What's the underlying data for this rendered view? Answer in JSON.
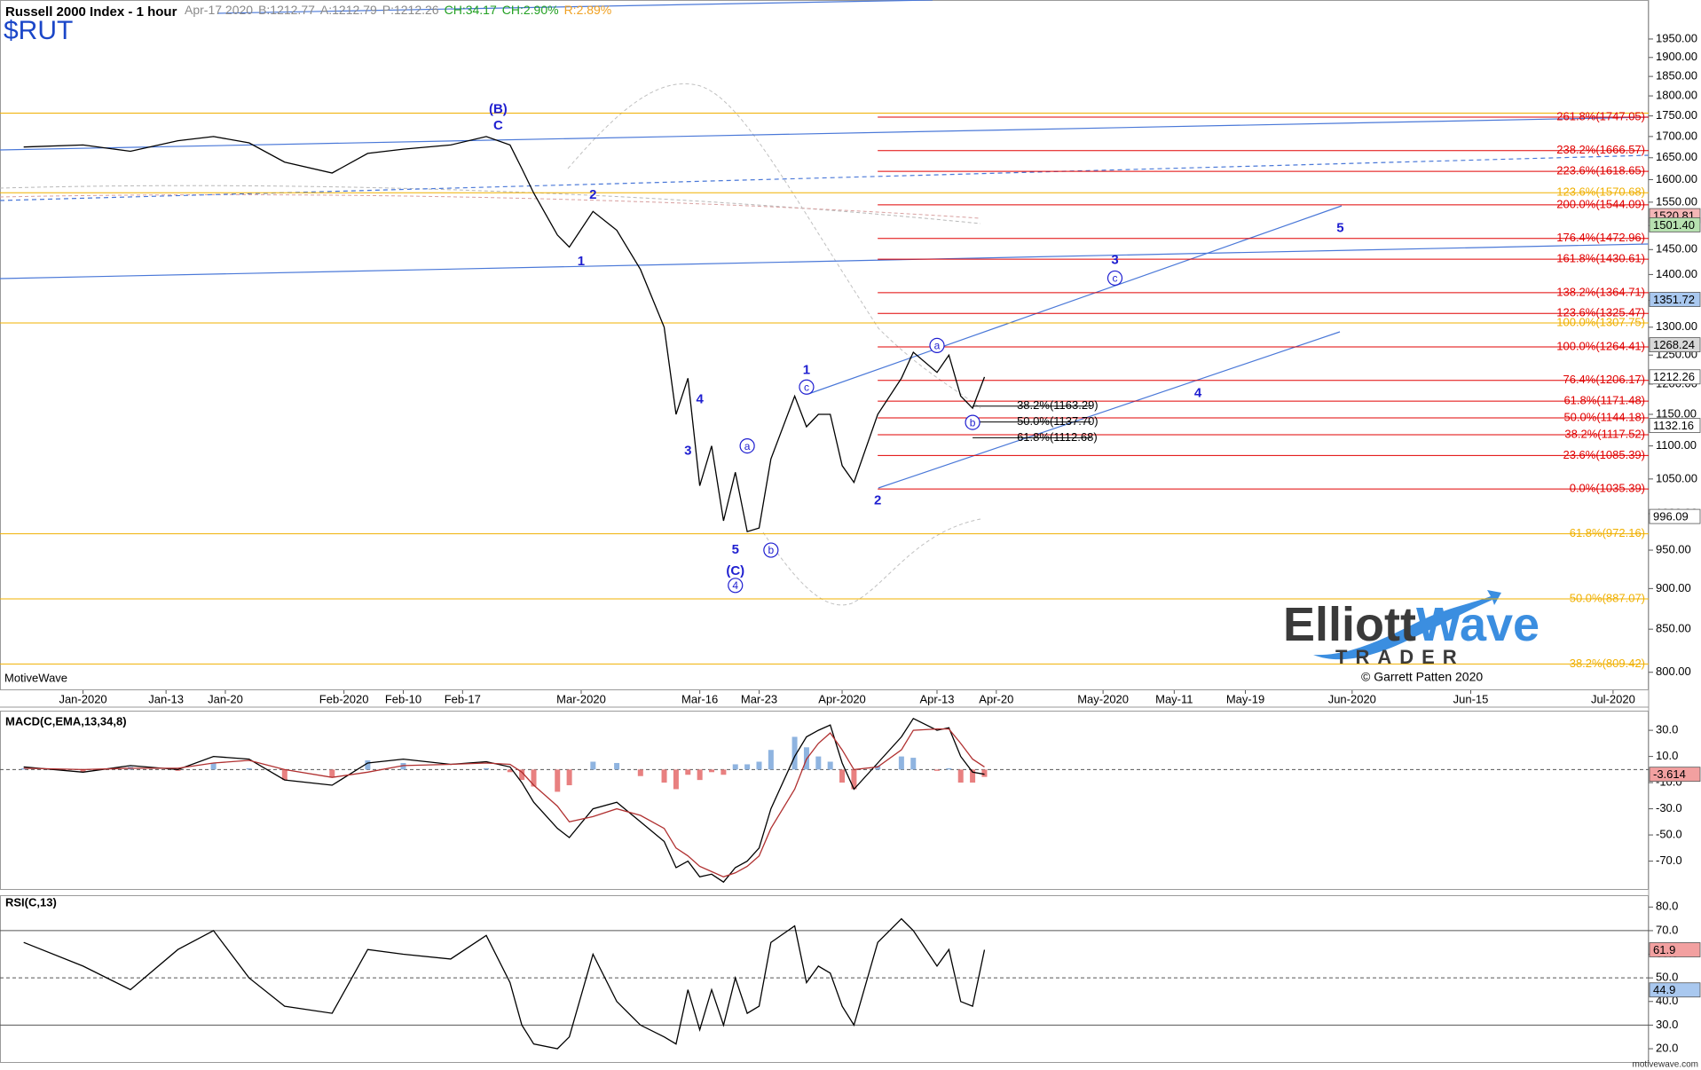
{
  "header": {
    "symbol": "$RUT",
    "quote": [
      {
        "text": "Apr-17 2020",
        "color": "#8a8a8a"
      },
      {
        "text": "B:1212.77",
        "color": "#8a8a8a"
      },
      {
        "text": "A:1212.79",
        "color": "#8a8a8a"
      },
      {
        "text": "P:1212.26",
        "color": "#8a8a8a"
      },
      {
        "text": "CH:34.17",
        "color": "#22a022"
      },
      {
        "text": "CH:2.90%",
        "color": "#22a022"
      },
      {
        "text": "R:2.89%",
        "color": "#f0a020"
      }
    ]
  },
  "footer": {
    "platform": "MotiveWave",
    "copyright": "© Garrett Patten 2020",
    "site": "motivewave.com",
    "logo_word1": "Elliott",
    "logo_word2": "Wave",
    "logo_word3": "TRADER"
  },
  "chart_data": [
    {
      "type": "line",
      "title": "Russell 2000 Index - 1 hour",
      "log_scale": true,
      "x": [
        "2019-12-26",
        "2020-01-02",
        "2020-01-08",
        "2020-01-14",
        "2020-01-17",
        "2020-01-22",
        "2020-01-27",
        "2020-01-31",
        "2020-02-05",
        "2020-02-10",
        "2020-02-14",
        "2020-02-19",
        "2020-02-21",
        "2020-02-24",
        "2020-02-25",
        "2020-02-27",
        "2020-02-28",
        "2020-03-03",
        "2020-03-05",
        "2020-03-09",
        "2020-03-11",
        "2020-03-12",
        "2020-03-13",
        "2020-03-16",
        "2020-03-17",
        "2020-03-18",
        "2020-03-19",
        "2020-03-20",
        "2020-03-23",
        "2020-03-24",
        "2020-03-26",
        "2020-03-27",
        "2020-03-30",
        "2020-03-31",
        "2020-04-01",
        "2020-04-02",
        "2020-04-06",
        "2020-04-08",
        "2020-04-09",
        "2020-04-13",
        "2020-04-14",
        "2020-04-15",
        "2020-04-16",
        "2020-04-17"
      ],
      "series": [
        {
          "color": "#000000",
          "values": [
            1675,
            1680,
            1665,
            1690,
            1700,
            1685,
            1640,
            1615,
            1660,
            1670,
            1680,
            1700,
            1680,
            1625,
            1570,
            1480,
            1455,
            1530,
            1490,
            1410,
            1300,
            1150,
            1210,
            1040,
            1100,
            990,
            1060,
            975,
            980,
            1080,
            1180,
            1130,
            1150,
            1150,
            1070,
            1045,
            1150,
            1210,
            1255,
            1220,
            1250,
            1180,
            1160,
            1212
          ]
        }
      ],
      "xlim": [
        "2019-12-24",
        "2020-07-06"
      ],
      "xticks": [
        {
          "value": "2020-01-02",
          "label": "Jan-2020"
        },
        {
          "value": "2020-01-13",
          "label": "Jan-13"
        },
        {
          "value": "2020-01-20",
          "label": "Jan-20"
        },
        {
          "value": "2020-02-03",
          "label": "Feb-2020"
        },
        {
          "value": "2020-02-10",
          "label": "Feb-10"
        },
        {
          "value": "2020-02-17",
          "label": "Feb-17"
        },
        {
          "value": "2020-03-02",
          "label": "Mar-2020"
        },
        {
          "value": "2020-03-16",
          "label": "Mar-16"
        },
        {
          "value": "2020-03-23",
          "label": "Mar-23"
        },
        {
          "value": "2020-04-01",
          "label": "Apr-2020"
        },
        {
          "value": "2020-04-13",
          "label": "Apr-13"
        },
        {
          "value": "2020-04-20",
          "label": "Apr-20"
        },
        {
          "value": "2020-05-01",
          "label": "May-2020"
        },
        {
          "value": "2020-05-11",
          "label": "May-11"
        },
        {
          "value": "2020-05-19",
          "label": "May-19"
        },
        {
          "value": "2020-06-01",
          "label": "Jun-2020"
        },
        {
          "value": "2020-06-15",
          "label": "Jun-15"
        },
        {
          "value": "2020-07-01",
          "label": "Jul-2020"
        }
      ],
      "ylim": [
        780,
        2060
      ],
      "yticks": [
        {
          "value": 800,
          "label": "800.00"
        },
        {
          "value": 850,
          "label": "850.00"
        },
        {
          "value": 900,
          "label": "900.00"
        },
        {
          "value": 950,
          "label": "950.00"
        },
        {
          "value": 1000,
          "label": "1000.00"
        },
        {
          "value": 1050,
          "label": "1050.00"
        },
        {
          "value": 1100,
          "label": "1100.00"
        },
        {
          "value": 1150,
          "label": "1150.00"
        },
        {
          "value": 1200,
          "label": "1200.00"
        },
        {
          "value": 1250,
          "label": "1250.00"
        },
        {
          "value": 1300,
          "label": "1300.00"
        },
        {
          "value": 1350,
          "label": "1350.00"
        },
        {
          "value": 1400,
          "label": "1400.00"
        },
        {
          "value": 1450,
          "label": "1450.00"
        },
        {
          "value": 1500,
          "label": "1500.00"
        },
        {
          "value": 1550,
          "label": "1550.00"
        },
        {
          "value": 1600,
          "label": "1600.00"
        },
        {
          "value": 1650,
          "label": "1650.00"
        },
        {
          "value": 1700,
          "label": "1700.00"
        },
        {
          "value": 1750,
          "label": "1750.00"
        },
        {
          "value": 1800,
          "label": "1800.00"
        },
        {
          "value": 1850,
          "label": "1850.00"
        },
        {
          "value": 1900,
          "label": "1900.00"
        },
        {
          "value": 1950,
          "label": "1950.00"
        }
      ],
      "fib_groups": [
        {
          "color": "#f0b000",
          "levels": [
            {
              "value": 1757
            },
            {
              "value": 1570.68,
              "label": "123.6%(1570.68)"
            },
            {
              "value": 1307.75,
              "label": "100.0%(1307.75)"
            },
            {
              "value": 972.16,
              "label": "61.8%(972.16)"
            },
            {
              "value": 887.07,
              "label": "50.0%(887.07)"
            },
            {
              "value": 809.42,
              "label": "38.2%(809.42)"
            }
          ]
        },
        {
          "color": "#e00000",
          "from": "2020-04-06",
          "levels": [
            {
              "value": 1747.05,
              "label": "261.8%(1747.05)"
            },
            {
              "value": 1666.57,
              "label": "238.2%(1666.57)"
            },
            {
              "value": 1618.65,
              "label": "223.6%(1618.65)"
            },
            {
              "value": 1544.09,
              "label": "200.0%(1544.09)"
            },
            {
              "value": 1472.96,
              "label": "176.4%(1472.96)"
            },
            {
              "value": 1430.61,
              "label": "161.8%(1430.61)"
            },
            {
              "value": 1364.71,
              "label": "138.2%(1364.71)"
            },
            {
              "value": 1325.47,
              "label": "123.6%(1325.47)"
            },
            {
              "value": 1264.41,
              "label": "100.0%(1264.41)"
            },
            {
              "value": 1206.17,
              "label": "76.4%(1206.17)"
            },
            {
              "value": 1171.48,
              "label": "61.8%(1171.48)"
            },
            {
              "value": 1144.18,
              "label": "50.0%(1144.18)"
            },
            {
              "value": 1117.52,
              "label": "38.2%(1117.52)"
            },
            {
              "value": 1085.39,
              "label": "23.6%(1085.39)"
            },
            {
              "value": 1035.39,
              "label": "0.0%(1035.39)"
            }
          ]
        },
        {
          "color": "#000000",
          "from": "2020-04-16",
          "to": "2020-04-30",
          "levels": [
            {
              "value": 1163.29,
              "label": "38.2%(1163.29)"
            },
            {
              "value": 1137.7,
              "label": "50.0%(1137.70)"
            },
            {
              "value": 1112.68,
              "label": "61.8%(1112.68)"
            }
          ]
        }
      ],
      "annotations": [
        {
          "text": "(B)",
          "x": "2020-02-20",
          "y": 1766
        },
        {
          "text": "C",
          "x": "2020-02-20",
          "y": 1725
        },
        {
          "text": "1",
          "x": "2020-03-02",
          "y": 1425
        },
        {
          "text": "2",
          "x": "2020-03-03",
          "y": 1565
        },
        {
          "text": "3",
          "x": "2020-03-13",
          "y": 1092
        },
        {
          "text": "4",
          "x": "2020-03-16",
          "y": 1174
        },
        {
          "text": "5",
          "x": "2020-03-19",
          "y": 950
        },
        {
          "text": "(C)",
          "x": "2020-03-19",
          "y": 922
        },
        {
          "text": "4",
          "x": "2020-03-19",
          "y": 904,
          "circled": true
        },
        {
          "text": "a",
          "x": "2020-03-20",
          "y": 1100,
          "circled": true
        },
        {
          "text": "b",
          "x": "2020-03-24",
          "y": 950,
          "circled": true
        },
        {
          "text": "1",
          "x": "2020-03-27",
          "y": 1223
        },
        {
          "text": "c",
          "x": "2020-03-27",
          "y": 1195,
          "circled": true
        },
        {
          "text": "2",
          "x": "2020-04-06",
          "y": 1018
        },
        {
          "text": "a",
          "x": "2020-04-13",
          "y": 1267,
          "circled": true
        },
        {
          "text": "b",
          "x": "2020-04-16",
          "y": 1137,
          "circled": true
        },
        {
          "text": "3",
          "x": "2020-05-04",
          "y": 1428
        },
        {
          "text": "c",
          "x": "2020-05-04",
          "y": 1393,
          "circled": true
        },
        {
          "text": "4",
          "x": "2020-05-13",
          "y": 1184
        },
        {
          "text": "5",
          "x": "2020-05-29",
          "y": 1494
        }
      ],
      "axis_flags": [
        {
          "value": 1520.81,
          "color": "#f4b6b6"
        },
        {
          "value": 1501.4,
          "label": "1501.40",
          "color": "#b7e1b0"
        },
        {
          "value": 1351.72,
          "color": "#a9c8ef"
        },
        {
          "value": 1268.24,
          "color": "#d8d8d8"
        },
        {
          "value": 1212.26,
          "color": "#ffffff"
        },
        {
          "value": 1132.16,
          "color": "#ffffff"
        },
        {
          "value": 996.09,
          "color": "#ffffff"
        }
      ]
    },
    {
      "type": "macd",
      "title": "MACD(C,EMA,13,34,8)",
      "x": [
        "2019-12-26",
        "2020-01-02",
        "2020-01-08",
        "2020-01-14",
        "2020-01-17",
        "2020-01-22",
        "2020-01-27",
        "2020-01-31",
        "2020-02-05",
        "2020-02-10",
        "2020-02-14",
        "2020-02-19",
        "2020-02-21",
        "2020-02-24",
        "2020-02-25",
        "2020-02-27",
        "2020-02-28",
        "2020-03-03",
        "2020-03-05",
        "2020-03-09",
        "2020-03-11",
        "2020-03-12",
        "2020-03-13",
        "2020-03-16",
        "2020-03-17",
        "2020-03-18",
        "2020-03-19",
        "2020-03-20",
        "2020-03-23",
        "2020-03-24",
        "2020-03-26",
        "2020-03-27",
        "2020-03-30",
        "2020-03-31",
        "2020-04-01",
        "2020-04-02",
        "2020-04-06",
        "2020-04-08",
        "2020-04-09",
        "2020-04-13",
        "2020-04-14",
        "2020-04-15",
        "2020-04-16",
        "2020-04-17"
      ],
      "series": [
        {
          "color": "#000000",
          "values": [
            2,
            -2,
            3,
            0,
            10,
            8,
            -8,
            -12,
            5,
            8,
            4,
            6,
            2,
            -10,
            -25,
            -45,
            -52,
            -30,
            -25,
            -40,
            -55,
            -75,
            -70,
            -82,
            -80,
            -86,
            -75,
            -70,
            -60,
            -30,
            10,
            25,
            30,
            34,
            5,
            -15,
            5,
            25,
            39,
            30,
            32,
            10,
            -2,
            -3.614
          ]
        },
        {
          "color": "#b03030",
          "values": [
            1,
            0,
            1,
            1,
            5,
            7,
            0,
            -6,
            -2,
            3,
            4,
            5,
            4,
            -2,
            -12,
            -28,
            -40,
            -36,
            -30,
            -35,
            -45,
            -60,
            -66,
            -74,
            -78,
            -82,
            -79,
            -74,
            -66,
            -45,
            -15,
            8,
            20,
            28,
            15,
            0,
            2,
            15,
            30,
            31,
            31,
            20,
            8,
            2
          ]
        }
      ],
      "histogram": {
        "colors": [
          "#8fb4e0",
          "#e88080"
        ],
        "values": [
          1,
          -2,
          2,
          -1,
          5,
          1,
          -8,
          -6,
          7,
          5,
          0,
          1,
          -2,
          -8,
          -13,
          -17,
          -12,
          6,
          5,
          -5,
          -10,
          -15,
          -4,
          -8,
          -2,
          -4,
          4,
          4,
          6,
          15,
          25,
          17,
          10,
          6,
          -10,
          -15,
          3,
          10,
          9,
          -1,
          1,
          -10,
          -10,
          -5.614
        ]
      },
      "xlim": [
        "2019-12-24",
        "2020-07-06"
      ],
      "ylim": [
        -92,
        45
      ],
      "yticks": [
        {
          "value": -70,
          "label": "-70.0"
        },
        {
          "value": -50,
          "label": "-50.0"
        },
        {
          "value": -30,
          "label": "-30.0"
        },
        {
          "value": -10,
          "label": "-10.0"
        },
        {
          "value": 10,
          "label": "10.0"
        },
        {
          "value": 30,
          "label": "30.0"
        }
      ],
      "reference_lines": [
        {
          "value": 0,
          "dashed": true
        }
      ],
      "axis_flags": [
        {
          "value": -3.614,
          "color": "#f2a0a0"
        }
      ]
    },
    {
      "type": "line",
      "title": "RSI(C,13)",
      "x": [
        "2019-12-26",
        "2020-01-02",
        "2020-01-08",
        "2020-01-14",
        "2020-01-17",
        "2020-01-22",
        "2020-01-27",
        "2020-01-31",
        "2020-02-05",
        "2020-02-10",
        "2020-02-14",
        "2020-02-19",
        "2020-02-21",
        "2020-02-24",
        "2020-02-25",
        "2020-02-27",
        "2020-02-28",
        "2020-03-03",
        "2020-03-05",
        "2020-03-09",
        "2020-03-11",
        "2020-03-12",
        "2020-03-13",
        "2020-03-16",
        "2020-03-17",
        "2020-03-18",
        "2020-03-19",
        "2020-03-20",
        "2020-03-23",
        "2020-03-24",
        "2020-03-26",
        "2020-03-27",
        "2020-03-30",
        "2020-03-31",
        "2020-04-01",
        "2020-04-02",
        "2020-04-06",
        "2020-04-08",
        "2020-04-09",
        "2020-04-13",
        "2020-04-14",
        "2020-04-15",
        "2020-04-16",
        "2020-04-17"
      ],
      "series": [
        {
          "color": "#000000",
          "values": [
            65,
            55,
            45,
            62,
            70,
            50,
            38,
            35,
            62,
            60,
            58,
            68,
            48,
            30,
            22,
            20,
            25,
            60,
            40,
            30,
            25,
            22,
            45,
            28,
            45,
            30,
            50,
            35,
            38,
            65,
            72,
            48,
            55,
            52,
            38,
            30,
            65,
            75,
            70,
            55,
            62,
            40,
            38,
            61.9
          ]
        }
      ],
      "xlim": [
        "2019-12-24",
        "2020-07-06"
      ],
      "ylim": [
        14,
        85
      ],
      "yticks": [
        {
          "value": 20,
          "label": "20.0"
        },
        {
          "value": 30,
          "label": "30.0"
        },
        {
          "value": 40,
          "label": "40.0"
        },
        {
          "value": 50,
          "label": "50.0"
        },
        {
          "value": 60,
          "label": "60.0"
        },
        {
          "value": 70,
          "label": "70.0"
        },
        {
          "value": 80,
          "label": "80.0"
        }
      ],
      "reference_lines": [
        {
          "value": 70
        },
        {
          "value": 50,
          "dashed": true
        },
        {
          "value": 30
        }
      ],
      "axis_flags": [
        {
          "value": 61.9,
          "color": "#f2a0a0"
        },
        {
          "value": 44.9,
          "color": "#a9c8ef"
        }
      ]
    }
  ]
}
